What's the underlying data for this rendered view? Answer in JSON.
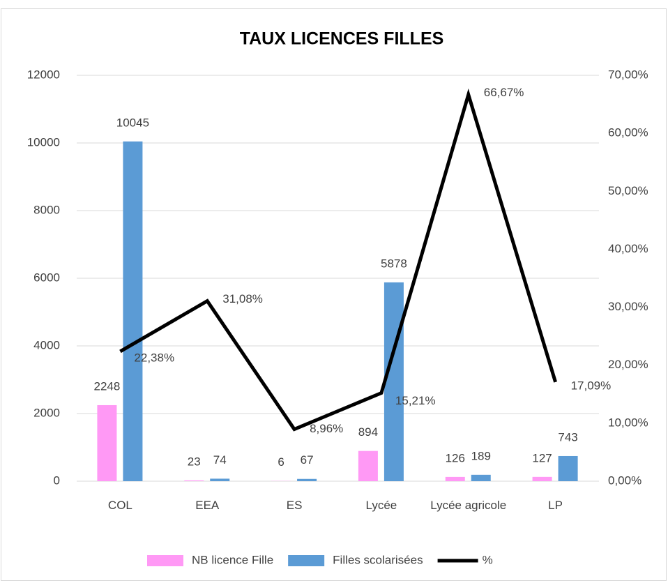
{
  "chart_data": {
    "type": "bar",
    "title": "TAUX LICENCES FILLES",
    "categories": [
      "COL",
      "EEA",
      "ES",
      "Lycée",
      "Lycée agricole",
      "LP"
    ],
    "series": [
      {
        "name": "NB licence Fille",
        "type": "bar",
        "color": "#ff99f5",
        "values": [
          2248,
          23,
          6,
          894,
          126,
          127
        ]
      },
      {
        "name": "Filles scolarisées",
        "type": "bar",
        "color": "#5b9bd5",
        "values": [
          10045,
          74,
          67,
          5878,
          189,
          743
        ]
      },
      {
        "name": "%",
        "type": "line",
        "axis": "y2",
        "color": "#000000",
        "values": [
          22.38,
          31.08,
          8.96,
          15.21,
          66.67,
          17.09
        ],
        "value_labels": [
          "22,38%",
          "31,08%",
          "8,96%",
          "15,21%",
          "66,67%",
          "17,09%"
        ]
      }
    ],
    "ylim": [
      0,
      12000
    ],
    "yticks": [
      0,
      2000,
      4000,
      6000,
      8000,
      10000,
      12000
    ],
    "y2lim": [
      0,
      70
    ],
    "y2ticks": [
      {
        "value": 0,
        "label": "0,00%"
      },
      {
        "value": 10,
        "label": "10,00%"
      },
      {
        "value": 20,
        "label": "20,00%"
      },
      {
        "value": 30,
        "label": "30,00%"
      },
      {
        "value": 40,
        "label": "40,00%"
      },
      {
        "value": 50,
        "label": "50,00%"
      },
      {
        "value": 60,
        "label": "60,00%"
      },
      {
        "value": 70,
        "label": "70,00%"
      }
    ],
    "grid": true,
    "legend": "bottom"
  }
}
